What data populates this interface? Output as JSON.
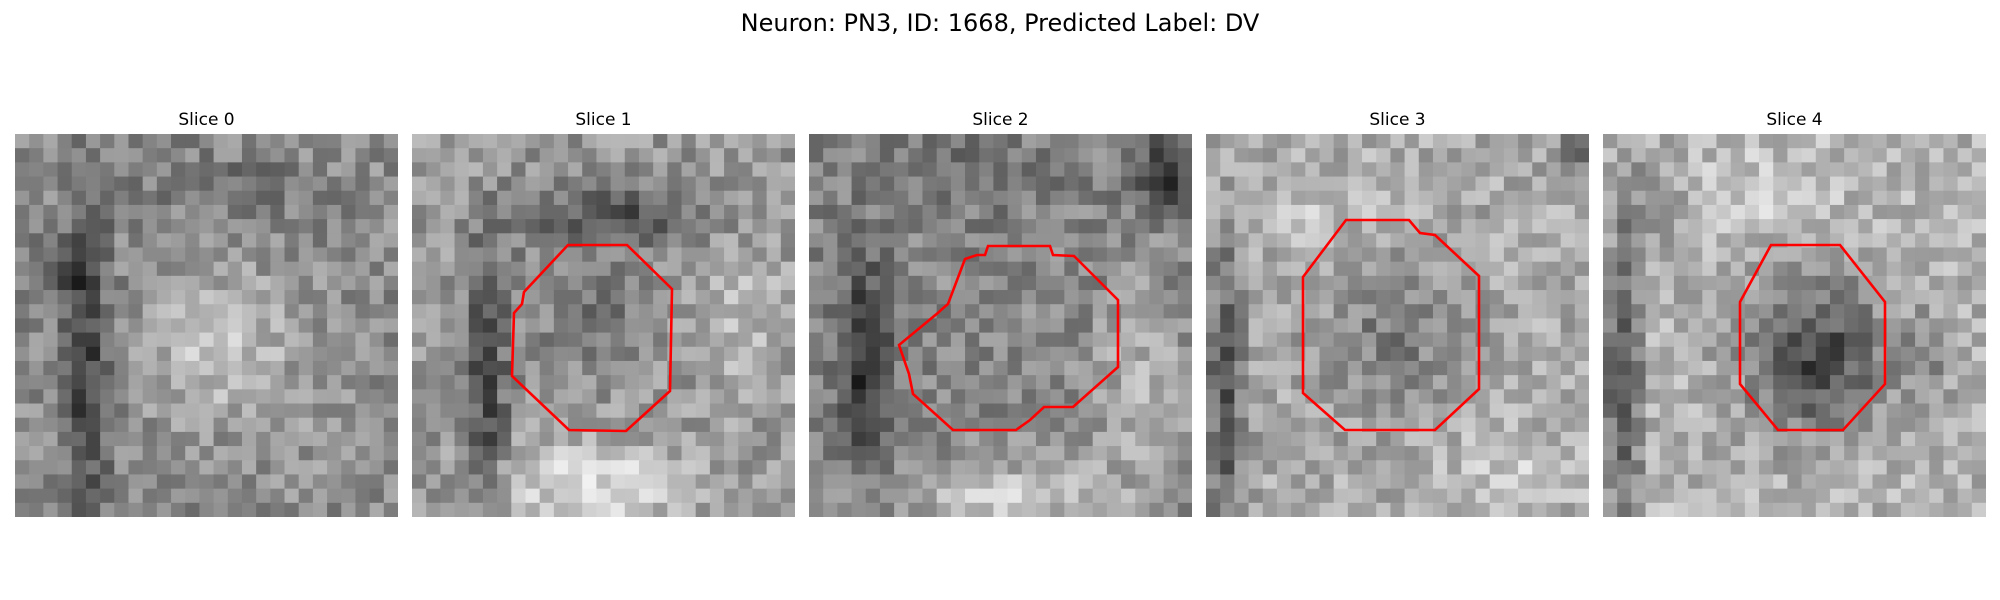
{
  "figure": {
    "title": "Neuron: PN3, ID: 1668, Predicted Label: DV"
  },
  "panels": [
    {
      "title": "Slice 0",
      "has_outline": false
    },
    {
      "title": "Slice 1",
      "has_outline": true
    },
    {
      "title": "Slice 2",
      "has_outline": true
    },
    {
      "title": "Slice 3",
      "has_outline": true
    },
    {
      "title": "Slice 4",
      "has_outline": true
    }
  ],
  "colors": {
    "outline": "#ff0000",
    "background": "#ffffff"
  },
  "image": {
    "colormap": "grayscale",
    "grid_size": 27
  }
}
